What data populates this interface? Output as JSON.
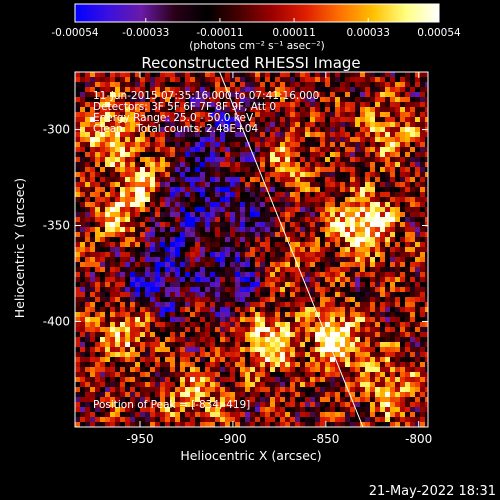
{
  "chart_data": {
    "type": "heatmap",
    "title": "Reconstructed RHESSI Image",
    "xlabel": "Heliocentric X (arcsec)",
    "ylabel": "Heliocentric Y (arcsec)",
    "xlim": [
      -985,
      -795
    ],
    "ylim": [
      -455,
      -270
    ],
    "xticks": [
      -950,
      -900,
      -850,
      -800
    ],
    "xtick_labels": [
      "-950",
      "-900",
      "-850",
      "-800"
    ],
    "yticks": [
      -400,
      -350,
      -300
    ],
    "ytick_labels": [
      "-400",
      "-350",
      "-300"
    ],
    "colorbar": {
      "range": [
        -0.00054,
        0.00054
      ],
      "ticks": [
        -0.00054,
        -0.00033,
        -0.00011,
        0.00011,
        0.00033,
        0.00054
      ],
      "tick_labels": [
        "-0.00054",
        "-0.00033",
        "-0.00011",
        "0.00011",
        "0.00033",
        "0.00054"
      ],
      "unit_label": "(photons cm⁻² s⁻¹ asec⁻²)",
      "colors": [
        "#0000ff",
        "#3a10e0",
        "#6a1aa8",
        "#2a0018",
        "#000000",
        "#4a0000",
        "#a00000",
        "#e02000",
        "#ff7000",
        "#ffc000",
        "#ffff80",
        "#ffffff"
      ]
    },
    "info_lines": [
      "11-Jun-2015 07:35:16.000 to 07:41:16.000",
      "Detectors: 3F 5F 6F 7F 8F 9F, Att 0",
      "Energy Range: 25.0 - 50.0 keV",
      "Clean    Total counts: 2.48E+04"
    ],
    "peak_label": "Position of Peak = [-834,-419]",
    "peak": [
      -834,
      -419
    ],
    "limb_line": [
      [
        -908,
        -268
      ],
      [
        -830,
        -455
      ]
    ],
    "hot_spots": [
      {
        "x": -830,
        "y": -350,
        "amp": 1.0
      },
      {
        "x": -844,
        "y": -410,
        "amp": 0.9
      },
      {
        "x": -880,
        "y": -412,
        "amp": 0.85
      },
      {
        "x": -968,
        "y": -300,
        "amp": 0.7
      },
      {
        "x": -958,
        "y": -405,
        "amp": 0.7
      },
      {
        "x": -960,
        "y": -345,
        "amp": 0.6
      },
      {
        "x": -948,
        "y": -325,
        "amp": 0.55
      },
      {
        "x": -870,
        "y": -320,
        "amp": 0.5
      },
      {
        "x": -920,
        "y": -440,
        "amp": 0.5
      },
      {
        "x": -815,
        "y": -300,
        "amp": 0.55
      },
      {
        "x": -875,
        "y": -365,
        "amp": 0.4
      },
      {
        "x": -815,
        "y": -435,
        "amp": 0.6
      }
    ],
    "cold_spots": [
      {
        "x": -920,
        "y": -330,
        "amp": 0.8
      },
      {
        "x": -900,
        "y": -375,
        "amp": 0.75
      },
      {
        "x": -935,
        "y": -360,
        "amp": 0.7
      },
      {
        "x": -945,
        "y": -385,
        "amp": 0.7
      },
      {
        "x": -885,
        "y": -345,
        "amp": 0.6
      },
      {
        "x": -905,
        "y": -300,
        "amp": 0.55
      }
    ]
  },
  "footer": {
    "date": "21-May-2022 18:31"
  }
}
